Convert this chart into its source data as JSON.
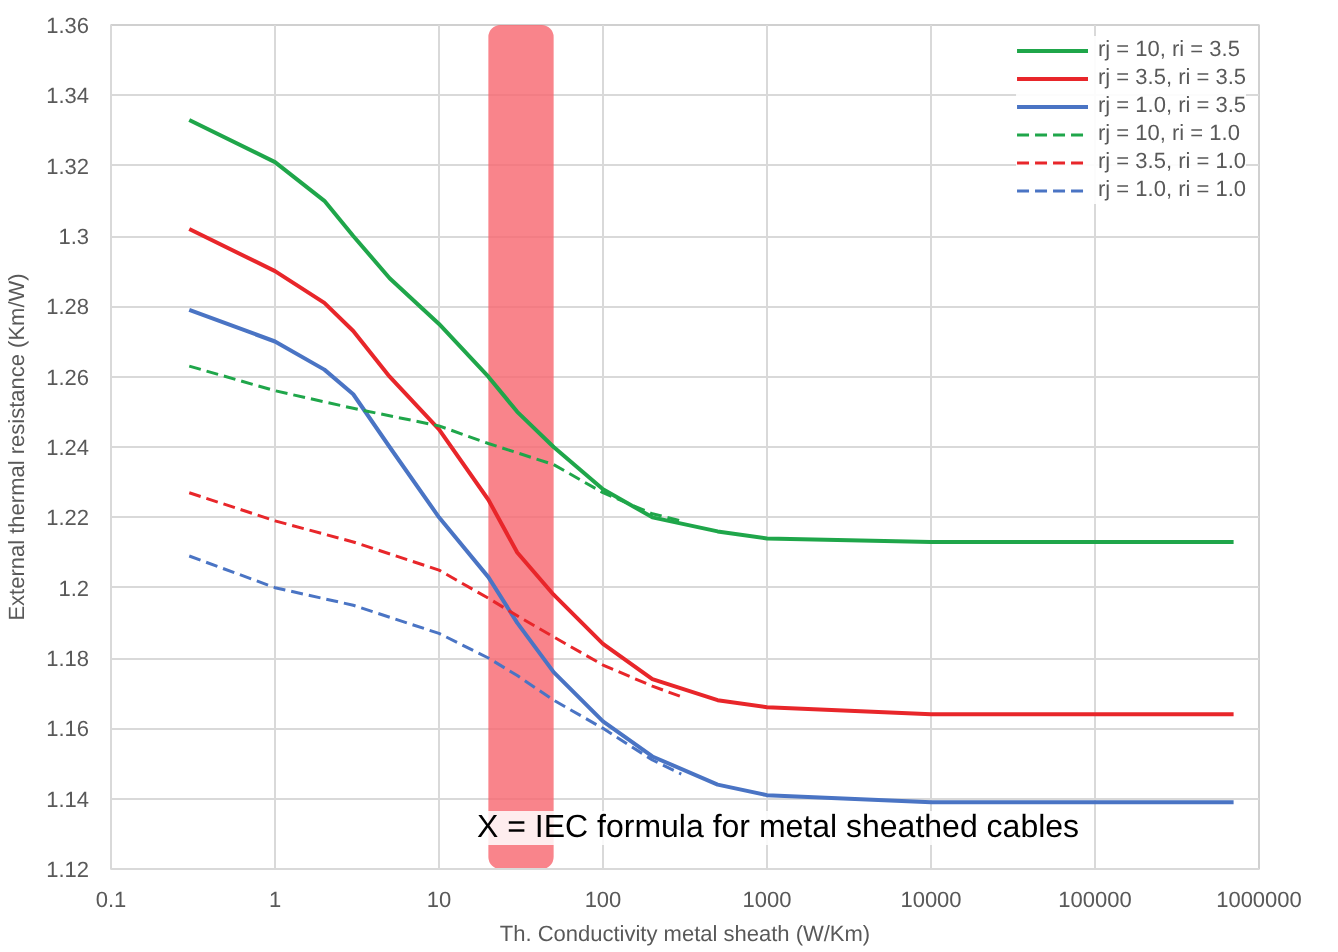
{
  "chart_data": {
    "type": "line",
    "xlabel": "Th. Conductivity metal sheath (W/Km)",
    "ylabel": "External thermal resistance (Km/W)",
    "log": "x",
    "grid": true,
    "legend": "top right",
    "xlim": [
      0.1,
      1000000
    ],
    "xticks": [
      0.1,
      1,
      10,
      100,
      1000,
      10000,
      100000,
      1000000
    ],
    "ylim": [
      1.12,
      1.36
    ],
    "yticks": [
      1.12,
      1.14,
      1.16,
      1.18,
      1.2,
      1.22,
      1.24,
      1.26,
      1.28,
      1.3,
      1.32,
      1.34,
      1.36
    ],
    "series": [
      {
        "name": "rj = 10, ri = 3.5",
        "color": "#1fa64a",
        "line_style": "solid",
        "x": [
          0.3,
          1,
          2,
          3,
          5,
          10,
          20,
          30,
          50,
          100,
          200,
          500,
          1000,
          10000,
          700000
        ],
        "values": [
          1.333,
          1.321,
          1.31,
          1.3,
          1.288,
          1.275,
          1.26,
          1.25,
          1.24,
          1.228,
          1.22,
          1.216,
          1.214,
          1.213,
          1.213
        ]
      },
      {
        "name": "rj = 3.5, ri = 3.5",
        "color": "#e8262a",
        "line_style": "solid",
        "x": [
          0.3,
          1,
          2,
          3,
          5,
          10,
          20,
          30,
          50,
          100,
          200,
          500,
          1000,
          10000,
          700000
        ],
        "values": [
          1.302,
          1.29,
          1.281,
          1.273,
          1.26,
          1.245,
          1.225,
          1.21,
          1.198,
          1.184,
          1.174,
          1.168,
          1.166,
          1.164,
          1.164
        ]
      },
      {
        "name": "rj = 1.0, ri = 3.5",
        "color": "#4a74c4",
        "line_style": "solid",
        "x": [
          0.3,
          1,
          2,
          3,
          5,
          10,
          20,
          30,
          50,
          100,
          200,
          500,
          1000,
          10000,
          700000
        ],
        "values": [
          1.279,
          1.27,
          1.262,
          1.255,
          1.24,
          1.22,
          1.203,
          1.19,
          1.176,
          1.162,
          1.152,
          1.144,
          1.141,
          1.139,
          1.139
        ]
      },
      {
        "name": "rj = 10, ri = 1.0",
        "color": "#1fa64a",
        "line_style": "dashed",
        "x": [
          0.3,
          1,
          3,
          10,
          20,
          50,
          100,
          200,
          300
        ],
        "values": [
          1.263,
          1.256,
          1.251,
          1.246,
          1.241,
          1.235,
          1.227,
          1.221,
          1.219
        ]
      },
      {
        "name": "rj = 3.5, ri = 1.0",
        "color": "#e8262a",
        "line_style": "dashed",
        "x": [
          0.3,
          1,
          3,
          10,
          20,
          30,
          50,
          100,
          200,
          300
        ],
        "values": [
          1.227,
          1.219,
          1.213,
          1.205,
          1.197,
          1.192,
          1.186,
          1.178,
          1.172,
          1.169
        ]
      },
      {
        "name": "rj = 1.0, ri = 1.0",
        "color": "#4a74c4",
        "line_style": "dashed",
        "x": [
          0.3,
          1,
          3,
          10,
          20,
          30,
          50,
          100,
          200,
          300
        ],
        "values": [
          1.209,
          1.2,
          1.195,
          1.187,
          1.18,
          1.175,
          1.168,
          1.16,
          1.151,
          1.147
        ]
      }
    ],
    "bands": [
      {
        "axis": "x",
        "from": 20,
        "to": 50,
        "color": "#f7656e"
      }
    ],
    "annotations": [
      "X = IEC formula for metal sheathed cables"
    ]
  }
}
